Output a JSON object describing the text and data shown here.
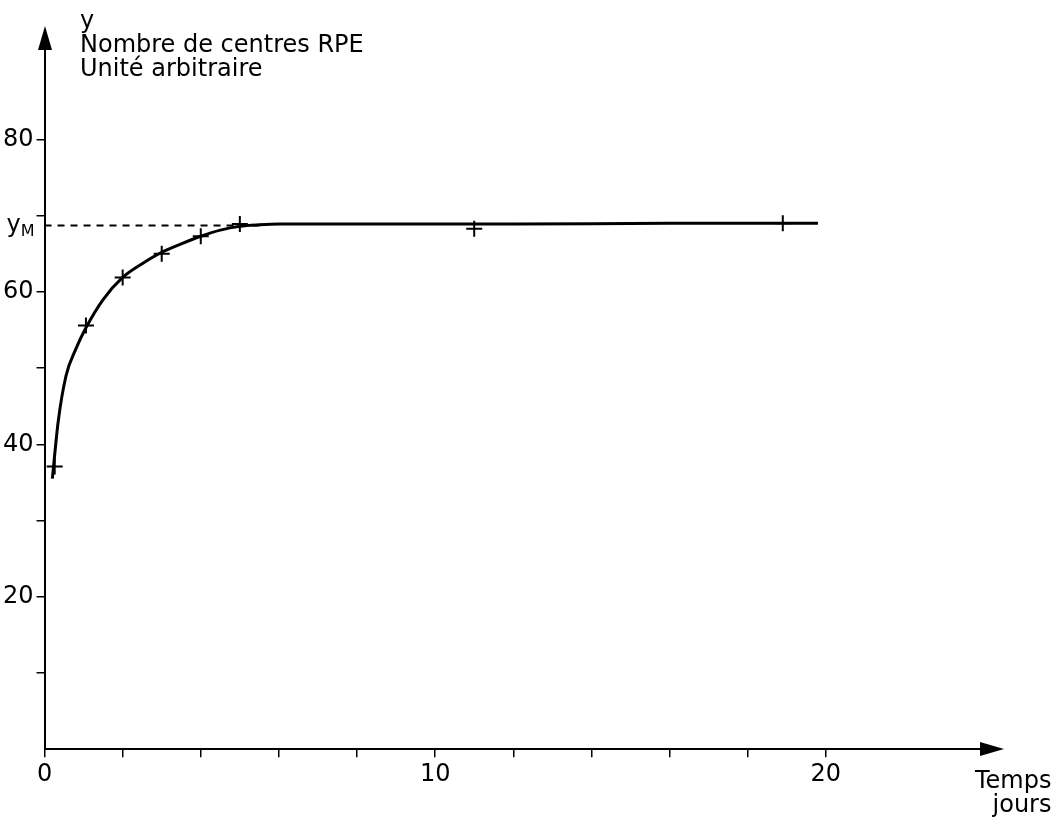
{
  "chart_data": {
    "type": "scatter",
    "xlabel": "Temps\njours",
    "ylabel": "y\nNombre de centres RPE\nUnité arbitraire",
    "xlim": [
      0,
      24
    ],
    "ylim": [
      0,
      92
    ],
    "xticks": [
      0,
      {
        "value": 2,
        "label": null
      },
      {
        "value": 4,
        "label": null
      },
      {
        "value": 6,
        "label": null
      },
      {
        "value": 8,
        "label": null
      },
      10,
      {
        "value": 12,
        "label": null
      },
      {
        "value": 14,
        "label": null
      },
      {
        "value": 16,
        "label": null
      },
      {
        "value": 18,
        "label": null
      },
      20
    ],
    "yticks": [
      {
        "value": 10,
        "label": null
      },
      20,
      {
        "value": 30,
        "label": null
      },
      40,
      {
        "value": 50,
        "label": null
      },
      60,
      {
        "value": 70,
        "label": null
      },
      80
    ],
    "grid": false,
    "legend": false,
    "ref_lines": [
      {
        "axis": "y",
        "value": 68.7,
        "label": "y$_{M}$",
        "line_style": "dashed",
        "color": "#000000"
      }
    ],
    "series": [
      {
        "marker": "cross",
        "color": "#000000",
        "x": [
          0.26,
          1.06,
          2.0,
          3.0,
          4.0,
          5.0,
          11.0,
          18.9
        ],
        "values": [
          37.1,
          55.6,
          61.9,
          65.0,
          67.3,
          68.9,
          68.3,
          69.0
        ]
      },
      {
        "type": "line",
        "marker": "none",
        "color": "#000000",
        "x": [
          0.2,
          0.35,
          0.55,
          0.8,
          1.06,
          1.5,
          2.0,
          2.5,
          3.0,
          3.5,
          4.0,
          4.5,
          5.0,
          5.5,
          6.0,
          8.0,
          12.0,
          16.0,
          19.8
        ],
        "values": [
          35.5,
          43,
          49,
          52.5,
          55.3,
          59,
          61.9,
          63.7,
          65.2,
          66.3,
          67.3,
          68.1,
          68.6,
          68.8,
          68.9,
          68.9,
          68.9,
          69.0,
          69.0
        ]
      }
    ]
  }
}
